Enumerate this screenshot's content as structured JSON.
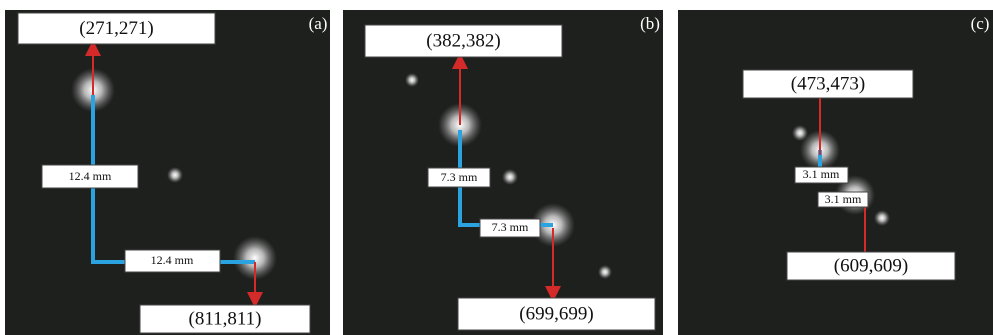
{
  "panels": [
    {
      "label": "(a)",
      "top": "(271,271)",
      "bottom": "(811,811)",
      "measurements": [
        "12.4 mm",
        "12.4 mm"
      ]
    },
    {
      "label": "(b)",
      "top": "(382,382)",
      "bottom": "(699,699)",
      "measurements": [
        "7.3 mm",
        "7.3 mm"
      ]
    },
    {
      "label": "(c)",
      "top": "(473,473)",
      "bottom": "(609,609)",
      "measurements": [
        "3.1 mm",
        "3.1 mm"
      ]
    }
  ]
}
